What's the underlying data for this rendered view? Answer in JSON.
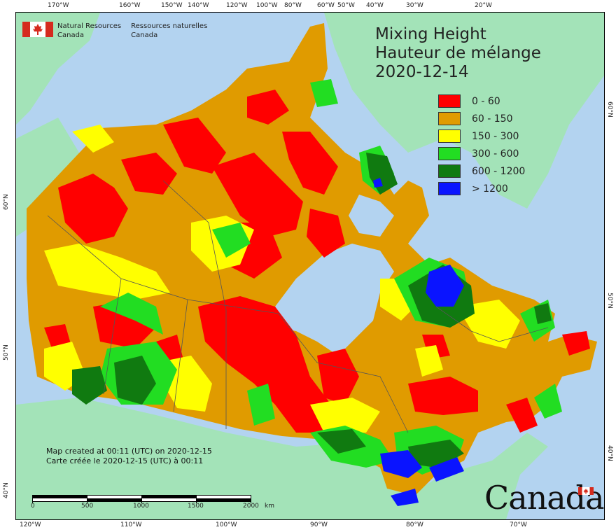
{
  "title": {
    "line1": "Mixing Height",
    "line2": "Hauteur de mélange",
    "date": "2020-12-14"
  },
  "agency": {
    "en_line1": "Natural Resources",
    "en_line2": "Canada",
    "fr_line1": "Ressources naturelles",
    "fr_line2": "Canada"
  },
  "legend": [
    {
      "label": "0 - 60",
      "color": "#ff0000"
    },
    {
      "label": "60 - 150",
      "color": "#e09b00"
    },
    {
      "label": "150 - 300",
      "color": "#ffff00"
    },
    {
      "label": "300 - 600",
      "color": "#22dd22"
    },
    {
      "label": "600 - 1200",
      "color": "#107a10"
    },
    {
      "label": "> 1200",
      "color": "#0a14ff"
    }
  ],
  "created": {
    "en": "Map created at 00:11 (UTC) on 2020-12-15",
    "fr": "Carte créée le 2020-12-15 (UTC) à 00:11"
  },
  "scalebar": {
    "ticks": [
      "0",
      "500",
      "1000",
      "1500",
      "2000"
    ],
    "unit": "km"
  },
  "wordmark": "Canada",
  "top_ticks": [
    "170°W",
    "160°W",
    "150°W",
    "140°W",
    "120°W",
    "100°W",
    "80°W",
    "60°W",
    "50°W",
    "40°W",
    "30°W",
    "20°W"
  ],
  "bottom_ticks": [
    "120°W",
    "110°W",
    "100°W",
    "90°W",
    "80°W",
    "70°W"
  ],
  "left_ticks": [
    "60°N",
    "50°N",
    "40°N"
  ],
  "right_ticks": [
    "60°N",
    "50°N",
    "40°N"
  ],
  "colors": {
    "ocean": "#b3d3f0",
    "foreign_land": "#a3e3b8"
  }
}
